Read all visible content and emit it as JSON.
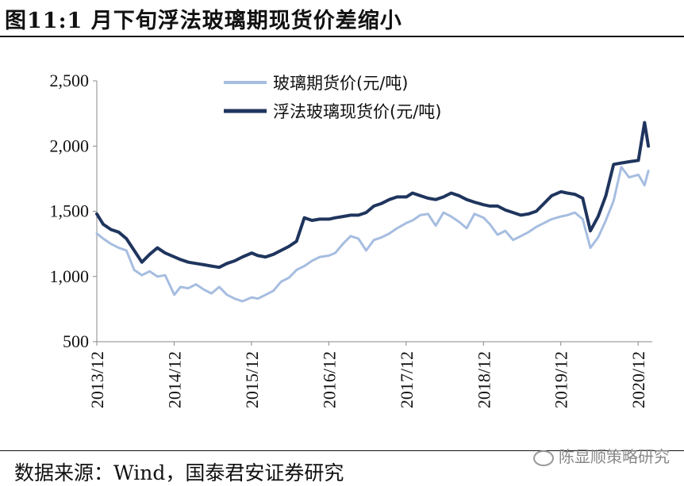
{
  "page": {
    "title": "图11:1 月下旬浮法玻璃期现货价差缩小",
    "source": "数据来源：Wind，国泰君安证券研究",
    "watermark": "陈显顺策略研究"
  },
  "chart_data": {
    "type": "line",
    "title": "",
    "xlabel": "",
    "ylabel": "",
    "ylim": [
      500,
      2500
    ],
    "yticks": [
      "2,500",
      "2,000",
      "1,500",
      "1,000",
      "500"
    ],
    "ytick_values": [
      2500,
      2000,
      1500,
      1000,
      500
    ],
    "xtick_labels": [
      "2013/12",
      "2014/12",
      "2015/12",
      "2016/12",
      "2017/12",
      "2018/12",
      "2019/12",
      "2020/12"
    ],
    "xtick_values": [
      2013.917,
      2014.917,
      2015.917,
      2016.917,
      2017.917,
      2018.917,
      2019.917,
      2020.917
    ],
    "xlim": [
      2013.917,
      2021.1
    ],
    "legend_position": "top-center",
    "series": [
      {
        "name": "玻璃期货价(元/吨)",
        "color": "#a6bde0",
        "x": [
          2013.917,
          2014.0,
          2014.1,
          2014.2,
          2014.3,
          2014.4,
          2014.5,
          2014.6,
          2014.7,
          2014.8,
          2014.92,
          2015.0,
          2015.1,
          2015.2,
          2015.3,
          2015.4,
          2015.5,
          2015.6,
          2015.7,
          2015.8,
          2015.92,
          2016.0,
          2016.1,
          2016.2,
          2016.3,
          2016.4,
          2016.5,
          2016.6,
          2016.7,
          2016.8,
          2016.92,
          2017.0,
          2017.1,
          2017.2,
          2017.3,
          2017.4,
          2017.5,
          2017.6,
          2017.7,
          2017.8,
          2017.92,
          2018.0,
          2018.1,
          2018.2,
          2018.3,
          2018.4,
          2018.5,
          2018.6,
          2018.7,
          2018.8,
          2018.92,
          2019.0,
          2019.1,
          2019.2,
          2019.3,
          2019.4,
          2019.5,
          2019.6,
          2019.7,
          2019.8,
          2019.92,
          2020.0,
          2020.1,
          2020.2,
          2020.3,
          2020.4,
          2020.5,
          2020.6,
          2020.7,
          2020.8,
          2020.92,
          2021.0,
          2021.05
        ],
        "y": [
          1330,
          1290,
          1250,
          1220,
          1200,
          1050,
          1010,
          1040,
          1000,
          1010,
          860,
          920,
          910,
          940,
          900,
          870,
          920,
          860,
          830,
          810,
          840,
          830,
          860,
          890,
          960,
          990,
          1050,
          1080,
          1120,
          1150,
          1160,
          1180,
          1250,
          1310,
          1290,
          1200,
          1280,
          1300,
          1330,
          1370,
          1410,
          1430,
          1470,
          1480,
          1390,
          1490,
          1460,
          1420,
          1370,
          1480,
          1450,
          1400,
          1320,
          1350,
          1280,
          1310,
          1340,
          1380,
          1410,
          1440,
          1460,
          1470,
          1490,
          1440,
          1220,
          1300,
          1430,
          1580,
          1840,
          1760,
          1780,
          1700,
          1810
        ]
      },
      {
        "name": "浮法玻璃现货价(元/吨)",
        "color": "#1f355e",
        "x": [
          2013.917,
          2014.0,
          2014.1,
          2014.2,
          2014.3,
          2014.4,
          2014.5,
          2014.6,
          2014.7,
          2014.8,
          2014.92,
          2015.0,
          2015.1,
          2015.2,
          2015.3,
          2015.4,
          2015.5,
          2015.6,
          2015.7,
          2015.8,
          2015.92,
          2016.0,
          2016.1,
          2016.2,
          2016.3,
          2016.4,
          2016.5,
          2016.6,
          2016.7,
          2016.8,
          2016.92,
          2017.0,
          2017.1,
          2017.2,
          2017.3,
          2017.4,
          2017.5,
          2017.6,
          2017.7,
          2017.8,
          2017.92,
          2018.0,
          2018.1,
          2018.2,
          2018.3,
          2018.4,
          2018.5,
          2018.6,
          2018.7,
          2018.8,
          2018.92,
          2019.0,
          2019.1,
          2019.2,
          2019.3,
          2019.4,
          2019.5,
          2019.6,
          2019.7,
          2019.8,
          2019.92,
          2020.0,
          2020.1,
          2020.2,
          2020.3,
          2020.4,
          2020.5,
          2020.6,
          2020.7,
          2020.8,
          2020.92,
          2021.0,
          2021.05
        ],
        "y": [
          1480,
          1400,
          1360,
          1340,
          1290,
          1200,
          1110,
          1170,
          1220,
          1180,
          1150,
          1130,
          1110,
          1100,
          1090,
          1080,
          1070,
          1100,
          1120,
          1150,
          1180,
          1160,
          1150,
          1170,
          1200,
          1230,
          1270,
          1450,
          1430,
          1440,
          1440,
          1450,
          1460,
          1470,
          1470,
          1490,
          1540,
          1560,
          1590,
          1610,
          1610,
          1640,
          1620,
          1600,
          1590,
          1610,
          1640,
          1620,
          1590,
          1570,
          1550,
          1540,
          1540,
          1510,
          1490,
          1470,
          1480,
          1500,
          1560,
          1620,
          1650,
          1640,
          1630,
          1600,
          1350,
          1460,
          1620,
          1860,
          1870,
          1880,
          1890,
          2180,
          2000
        ]
      }
    ]
  }
}
